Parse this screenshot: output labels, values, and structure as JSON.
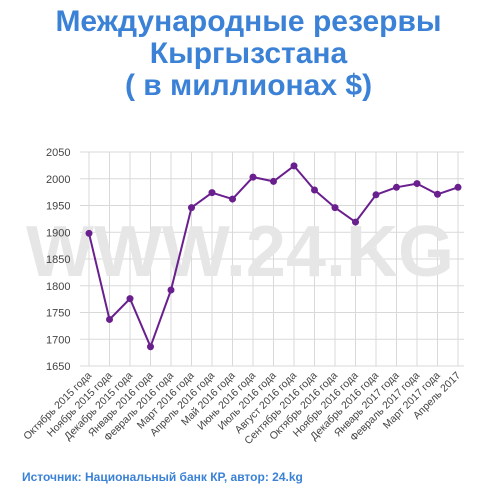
{
  "chart_data": {
    "type": "line",
    "title_lines": [
      "Международные резервы",
      "Кыргызстана",
      "( в миллионах $)"
    ],
    "watermark": "WWW.24.KG",
    "categories": [
      "Октябрь 2015 года",
      "Ноябрь 2015 года",
      "Декабрь 2015 года",
      "Январь 2016 года",
      "Февраль 2016 года",
      "Март 2016 года",
      "Апрель 2016 года",
      "Май 2016 года",
      "Июнь 2016 года",
      "Июль 2016 года",
      "Август 2016 года",
      "Сентябрь 2016 года",
      "Октябрь 2016 года",
      "Ноябрь 2016 года",
      "Декабрь 2016 года",
      "Январь 2017 года",
      "Февраль 2017 года",
      "Март 2017 года",
      "Апрель 2017"
    ],
    "series": [
      {
        "values": [
          1898,
          1737,
          1776,
          1686,
          1792,
          1946,
          1974,
          1962,
          2003,
          1995,
          2024,
          1979,
          1946,
          1919,
          1970,
          1984,
          1991,
          1971,
          1984
        ],
        "color": "#6a1f8e"
      }
    ],
    "y_ticks": [
      1650,
      1700,
      1750,
      1800,
      1850,
      1900,
      1950,
      2000,
      2050
    ],
    "ylim": [
      1650,
      2050
    ],
    "grid": true,
    "source": "Источник: Национальный банк КР, автор: 24.kg"
  }
}
